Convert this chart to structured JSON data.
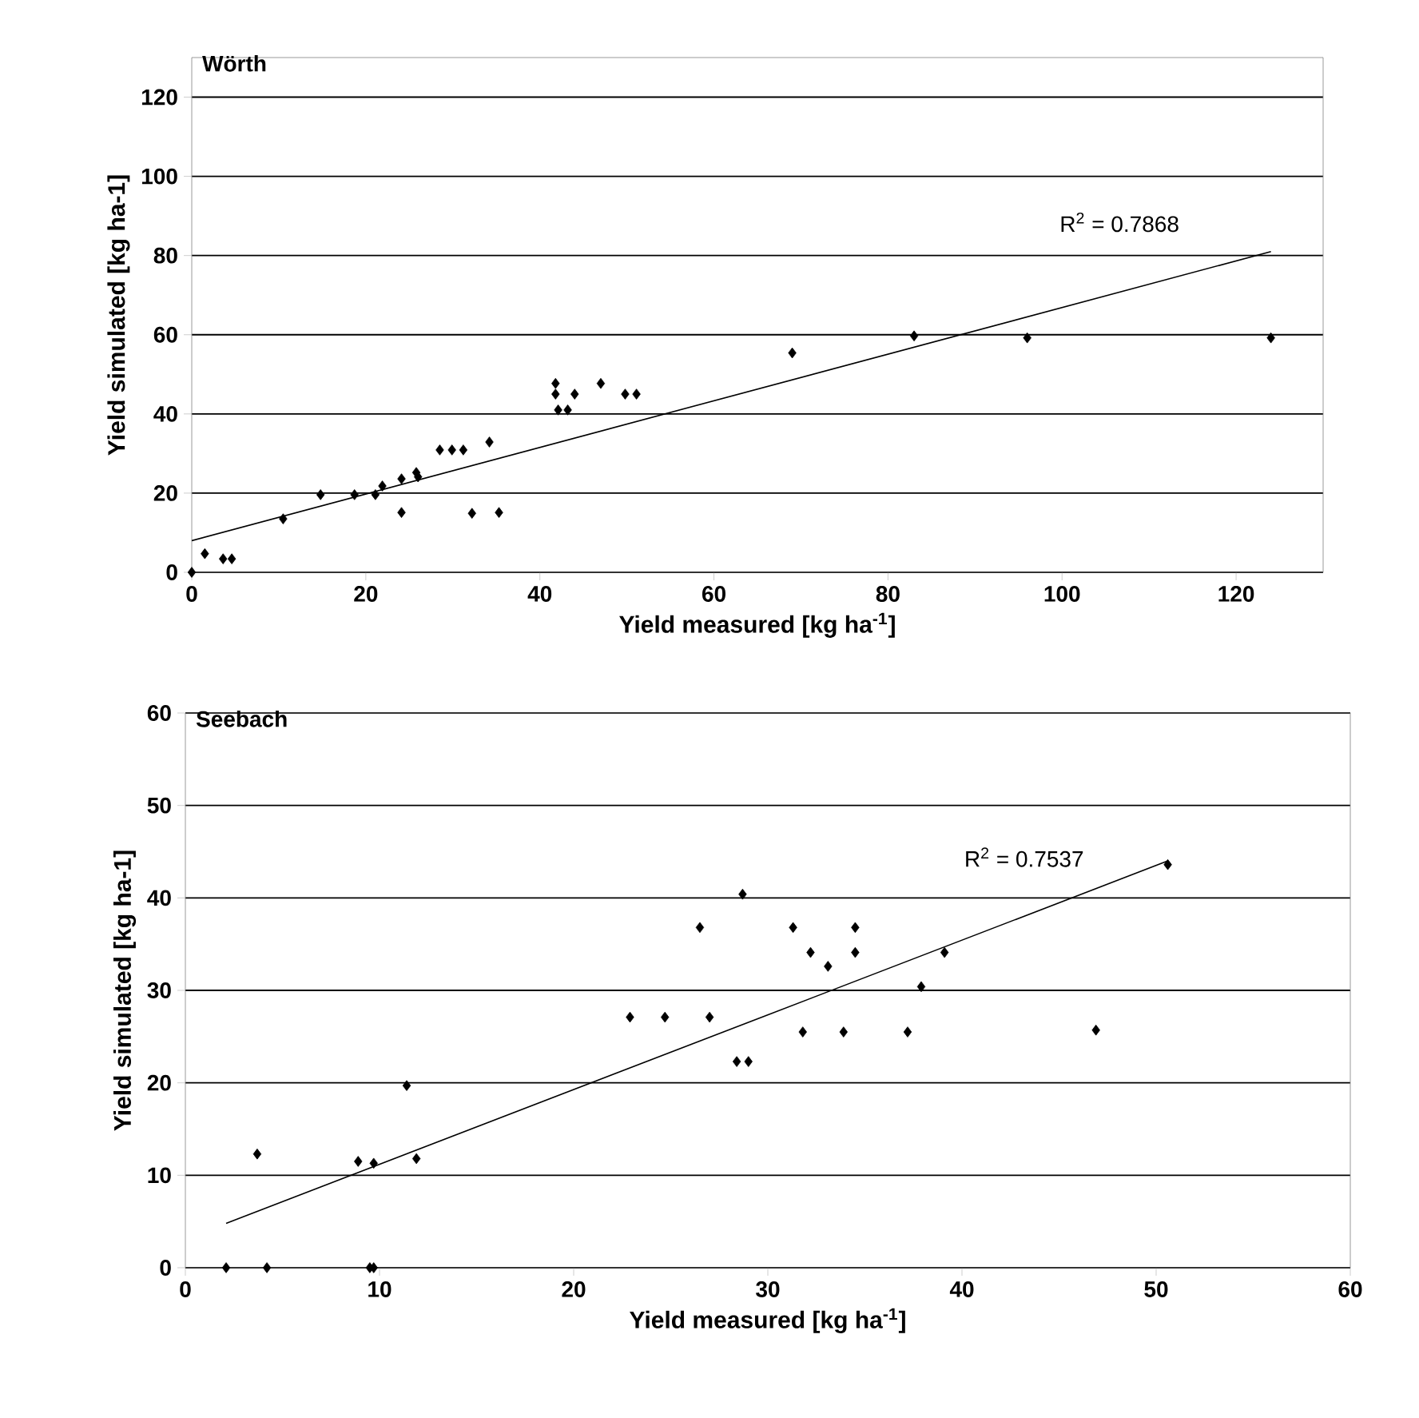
{
  "chart_data": [
    {
      "type": "scatter",
      "title": "Wörth",
      "xlabel": "Yield measured [kg ha$^{-1}$]",
      "ylabel": "Yield simulated [kg ha-1]",
      "xlim": [
        0,
        130
      ],
      "ylim": [
        0,
        130
      ],
      "xticks": [
        0,
        20,
        40,
        60,
        80,
        100,
        120
      ],
      "yticks": [
        0,
        20,
        40,
        60,
        80,
        100,
        120
      ],
      "grid": "y",
      "marker": "diamond",
      "series": [
        {
          "color": "#000000",
          "x": [
            0,
            1.5,
            3.6,
            4.6,
            10.5,
            14.8,
            18.7,
            21.1,
            21.9,
            24.1,
            24.1,
            25.8,
            26,
            28.5,
            29.9,
            31.2,
            34.2,
            32.2,
            35.3,
            41.8,
            41.8,
            42.1,
            43.2,
            44,
            47,
            49.8,
            51.1,
            69,
            83,
            96,
            124
          ],
          "values": [
            0,
            4.7,
            3.4,
            3.4,
            13.5,
            19.6,
            19.6,
            19.6,
            21.8,
            23.6,
            15.1,
            25.2,
            24.1,
            30.9,
            30.9,
            30.9,
            32.9,
            14.9,
            15.1,
            47.7,
            45,
            41,
            41,
            45,
            47.7,
            45,
            45,
            55.4,
            59.7,
            59.2,
            59.2
          ]
        },
        {
          "type": "line",
          "color": "#000000",
          "marker": "none",
          "x": [
            0,
            124
          ],
          "values": [
            8,
            81
          ]
        }
      ],
      "annotations": [
        "R$^{2}$ = 0.7868"
      ]
    },
    {
      "type": "scatter",
      "title": "Seebach",
      "xlabel": "Yield measured [kg ha$^{-1}$]",
      "ylabel": "Yield simulated [kg ha-1]",
      "xlim": [
        0,
        60
      ],
      "ylim": [
        0,
        60
      ],
      "xticks": [
        0,
        10,
        20,
        30,
        40,
        50,
        60
      ],
      "yticks": [
        0,
        10,
        20,
        30,
        40,
        50,
        60
      ],
      "grid": "y",
      "marker": "diamond",
      "series": [
        {
          "color": "#000000",
          "x": [
            2.1,
            4.2,
            9.5,
            9.7,
            3.7,
            8.9,
            9.7,
            11.9,
            11.4,
            22.9,
            24.7,
            27,
            26.5,
            28.7,
            28.4,
            29,
            31.3,
            31.8,
            32.2,
            33.1,
            33.9,
            34.5,
            34.5,
            37.2,
            37.9,
            39.1,
            46.9,
            50.6
          ],
          "values": [
            0,
            0,
            0,
            0,
            12.3,
            11.5,
            11.3,
            11.8,
            19.7,
            27.1,
            27.1,
            27.1,
            36.8,
            40.4,
            22.3,
            22.3,
            36.8,
            25.5,
            34.1,
            32.6,
            25.5,
            36.8,
            34.1,
            25.5,
            30.4,
            34.1,
            25.7,
            43.6
          ]
        },
        {
          "type": "line",
          "color": "#000000",
          "marker": "none",
          "x": [
            2.1,
            50.6
          ],
          "values": [
            4.8,
            44
          ]
        }
      ],
      "annotations": [
        "R$^{2}$ = 0.7537"
      ]
    }
  ]
}
